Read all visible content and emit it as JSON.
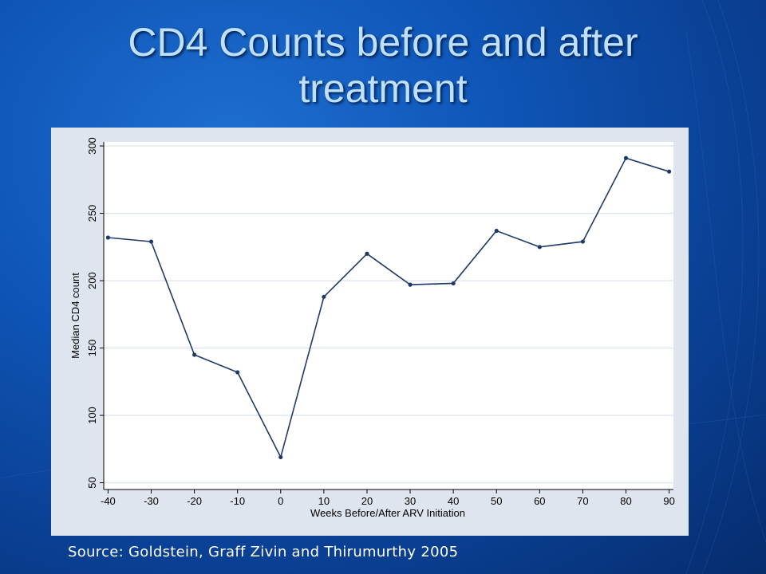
{
  "slide": {
    "title_line1": "CD4 Counts before and after",
    "title_line2": "treatment",
    "source": "Source: Goldstein, Graff Zivin and Thirumurthy 2005"
  },
  "colors": {
    "line": "#1f3a68",
    "panel": "#dfe5ee",
    "plot_bg": "#ffffff",
    "grid": "#dfe5ee",
    "title": "#bfe0ff"
  },
  "chart_data": {
    "type": "line",
    "x": [
      -40,
      -30,
      -20,
      -10,
      0,
      10,
      20,
      30,
      40,
      50,
      60,
      70,
      80,
      90
    ],
    "series": [
      {
        "values": [
          232,
          229,
          145,
          132,
          69,
          188,
          220,
          197,
          198,
          237,
          225,
          229,
          291,
          281
        ]
      }
    ],
    "xlabel": "Weeks Before/After ARV Initiation",
    "ylabel": "Median CD4 count",
    "xticks": [
      -40,
      -30,
      -20,
      -10,
      0,
      10,
      20,
      30,
      40,
      50,
      60,
      70,
      80,
      90
    ],
    "yticks": [
      50,
      100,
      150,
      200,
      250,
      300
    ],
    "xlim": [
      -41,
      91
    ],
    "ylim": [
      45,
      303
    ],
    "grid": true,
    "y_tick_labels_rotated": true
  }
}
